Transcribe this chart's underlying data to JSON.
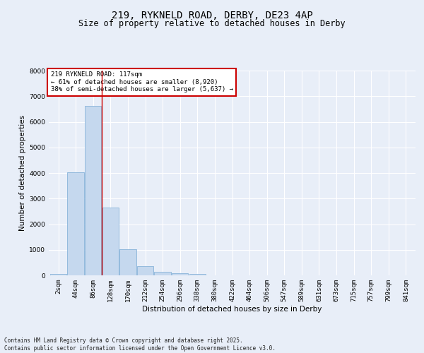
{
  "title1": "219, RYKNELD ROAD, DERBY, DE23 4AP",
  "title2": "Size of property relative to detached houses in Derby",
  "xlabel": "Distribution of detached houses by size in Derby",
  "ylabel": "Number of detached properties",
  "categories": [
    "2sqm",
    "44sqm",
    "86sqm",
    "128sqm",
    "170sqm",
    "212sqm",
    "254sqm",
    "296sqm",
    "338sqm",
    "380sqm",
    "422sqm",
    "464sqm",
    "506sqm",
    "547sqm",
    "589sqm",
    "631sqm",
    "673sqm",
    "715sqm",
    "757sqm",
    "799sqm",
    "841sqm"
  ],
  "values": [
    60,
    4040,
    6620,
    2640,
    1010,
    360,
    140,
    80,
    60,
    0,
    0,
    0,
    0,
    0,
    0,
    0,
    0,
    0,
    0,
    0,
    0
  ],
  "bar_color": "#c5d8ee",
  "bar_edge_color": "#7aaad4",
  "vline_x_index": 2.48,
  "vline_color": "#cc0000",
  "annotation_text": "219 RYKNELD ROAD: 117sqm\n← 61% of detached houses are smaller (8,920)\n38% of semi-detached houses are larger (5,637) →",
  "annotation_box_color": "#ffffff",
  "annotation_box_edge_color": "#cc0000",
  "ylim": [
    0,
    8000
  ],
  "yticks": [
    0,
    1000,
    2000,
    3000,
    4000,
    5000,
    6000,
    7000,
    8000
  ],
  "background_color": "#e8eef8",
  "grid_color": "#ffffff",
  "footer": "Contains HM Land Registry data © Crown copyright and database right 2025.\nContains public sector information licensed under the Open Government Licence v3.0.",
  "title_fontsize": 10,
  "subtitle_fontsize": 8.5,
  "axis_label_fontsize": 7.5,
  "tick_fontsize": 6.5,
  "annotation_fontsize": 6.5,
  "footer_fontsize": 5.5
}
